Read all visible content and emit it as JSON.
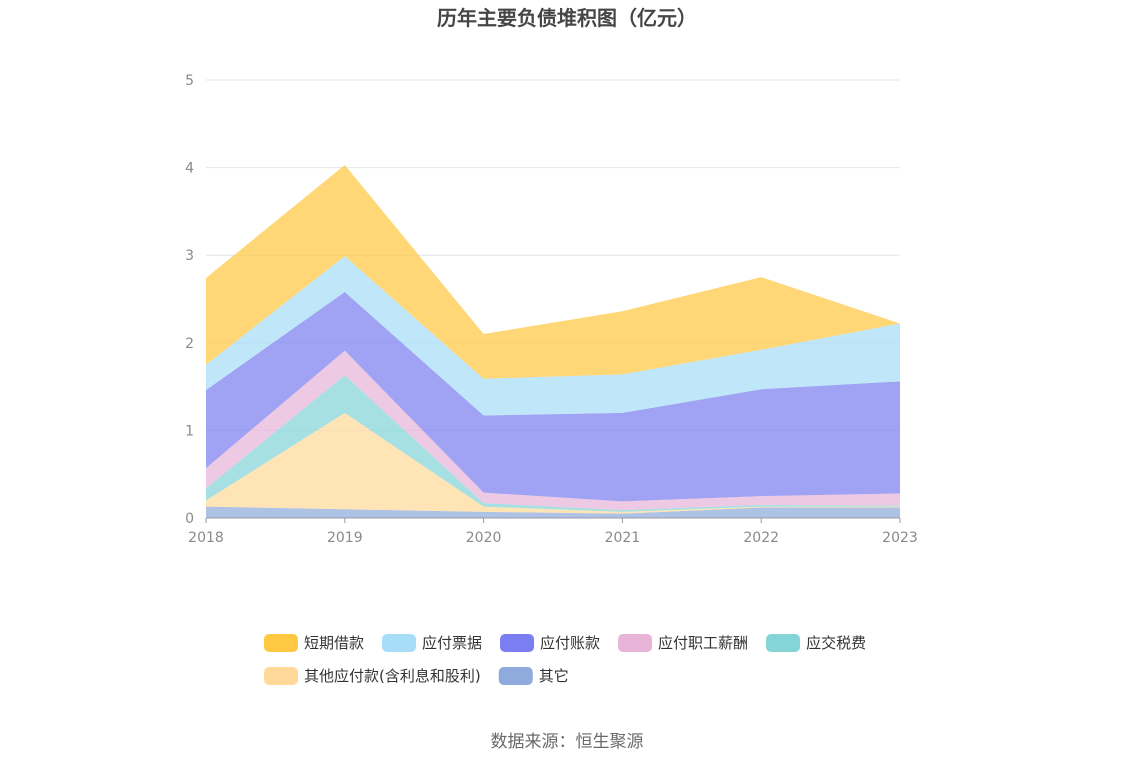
{
  "chart_data": {
    "type": "area",
    "stacked": true,
    "title": "历年主要负债堆积图（亿元）",
    "xlabel": "",
    "ylabel": "",
    "x": [
      "2018",
      "2019",
      "2020",
      "2021",
      "2022",
      "2023"
    ],
    "ylim": [
      0,
      5
    ],
    "yticks": [
      "0",
      "1",
      "2",
      "3",
      "4",
      "5"
    ],
    "grid": true,
    "legend_position": "bottom",
    "series": [
      {
        "name": "其它",
        "color": "#8faadc",
        "values": [
          0.13,
          0.1,
          0.07,
          0.05,
          0.12,
          0.12
        ]
      },
      {
        "name": "其他应付款(含利息和股利)",
        "color": "#ffd99a",
        "values": [
          0.07,
          1.1,
          0.06,
          0.02,
          0.01,
          0.01
        ]
      },
      {
        "name": "应交税费",
        "color": "#84d4d8",
        "values": [
          0.14,
          0.43,
          0.04,
          0.02,
          0.02,
          0.01
        ]
      },
      {
        "name": "应付职工薪酬",
        "color": "#e8b4d8",
        "values": [
          0.23,
          0.28,
          0.12,
          0.1,
          0.1,
          0.14
        ]
      },
      {
        "name": "应付账款",
        "color": "#7b7ef0",
        "values": [
          0.89,
          0.67,
          0.88,
          1.01,
          1.22,
          1.28
        ]
      },
      {
        "name": "应付票据",
        "color": "#a8ddf8",
        "values": [
          0.29,
          0.41,
          0.42,
          0.44,
          0.45,
          0.66
        ]
      },
      {
        "name": "短期借款",
        "color": "#ffc843",
        "values": [
          0.99,
          1.04,
          0.51,
          0.72,
          0.83,
          0.0
        ]
      }
    ],
    "legend_order": [
      "短期借款",
      "应付票据",
      "应付账款",
      "应付职工薪酬",
      "应交税费",
      "其他应付款(含利息和股利)",
      "其它"
    ],
    "source": "数据来源：恒生聚源"
  }
}
